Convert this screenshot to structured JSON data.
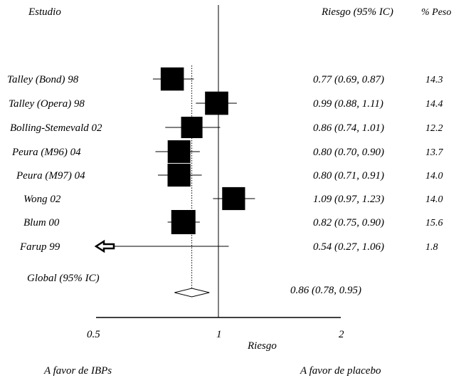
{
  "chart_data": {
    "type": "forest",
    "headers": {
      "study": "Estudio",
      "ratio": "Riesgo (95% IC)",
      "weight": "% Peso"
    },
    "studies": [
      {
        "label": "Talley (Bond) 98",
        "est": 0.77,
        "lo": 0.69,
        "hi": 0.87,
        "ci_text": "0.77 (0.69, 0.87)",
        "weight": "14.3"
      },
      {
        "label": "Talley (Opera) 98",
        "est": 0.99,
        "lo": 0.88,
        "hi": 1.11,
        "ci_text": "0.99 (0.88, 1.11)",
        "weight": "14.4"
      },
      {
        "label": "Bolling-Stemevald 02",
        "est": 0.86,
        "lo": 0.74,
        "hi": 1.01,
        "ci_text": "0.86 (0.74, 1.01)",
        "weight": "12.2"
      },
      {
        "label": "Peura (M96) 04",
        "est": 0.8,
        "lo": 0.7,
        "hi": 0.9,
        "ci_text": "0.80 (0.70, 0.90)",
        "weight": "13.7"
      },
      {
        "label": "Peura (M97) 04",
        "est": 0.8,
        "lo": 0.71,
        "hi": 0.91,
        "ci_text": "0.80 (0.71, 0.91)",
        "weight": "14.0"
      },
      {
        "label": "Wong 02",
        "est": 1.09,
        "lo": 0.97,
        "hi": 1.23,
        "ci_text": "1.09 (0.97, 1.23)",
        "weight": "14.0"
      },
      {
        "label": "Blum 00",
        "est": 0.82,
        "lo": 0.75,
        "hi": 0.9,
        "ci_text": "0.82 (0.75, 0.90)",
        "weight": "15.6"
      },
      {
        "label": "Farup 99",
        "est": 0.54,
        "lo": 0.27,
        "hi": 1.06,
        "ci_text": "0.54 (0.27, 1.06)",
        "weight": "1.8"
      }
    ],
    "overall": {
      "label": "Global (95% IC)",
      "est": 0.86,
      "lo": 0.78,
      "hi": 0.95,
      "ci_text": "0.86 (0.78, 0.95)"
    },
    "x_axis": {
      "scale": "log",
      "ticks": [
        0.5,
        1,
        2
      ],
      "tick_labels": [
        "0.5",
        "1",
        "2"
      ],
      "label": "Riesgo",
      "xlim": [
        0.5,
        2
      ]
    },
    "favours_left": "A favor de IBPs",
    "favours_right": "A favor de placebo",
    "colors": {
      "marker": "#000000",
      "line": "#000000"
    }
  }
}
